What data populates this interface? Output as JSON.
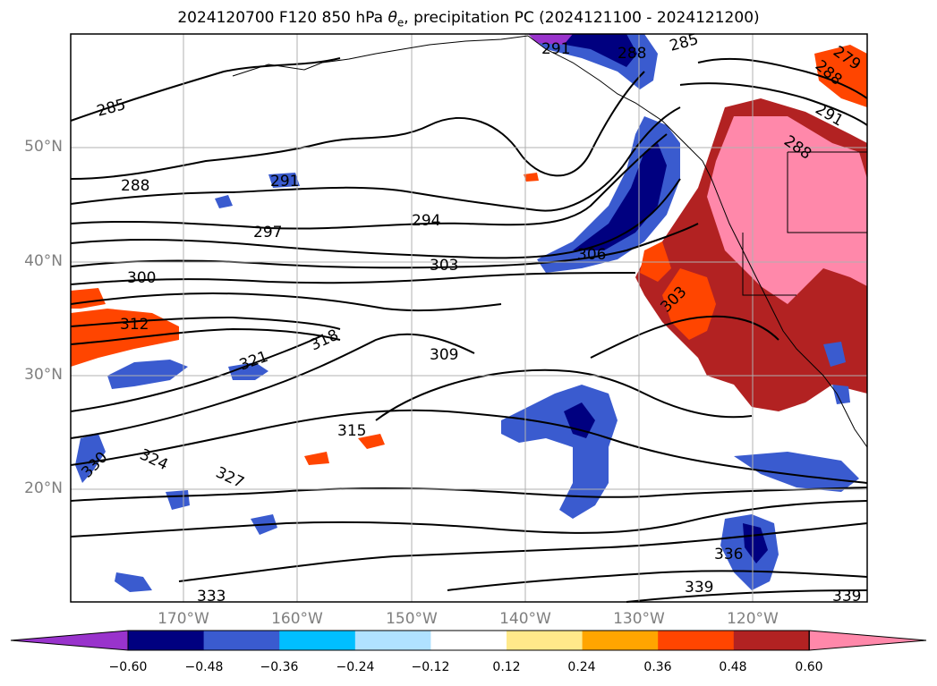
{
  "figure": {
    "title_prefix": "2024120700 F120 850 hPa ",
    "title_var": "θ",
    "title_sub": "e",
    "title_suffix": ", precipitation PC (2024121100 - 2024121200)"
  },
  "axes": {
    "lat_labels": [
      "50°N",
      "40°N",
      "30°N",
      "20°N"
    ],
    "lon_labels": [
      "170°W",
      "160°W",
      "150°W",
      "140°W",
      "130°W",
      "120°W"
    ]
  },
  "contour_labels": [
    "285",
    "288",
    "291",
    "294",
    "297",
    "300",
    "303",
    "306",
    "309",
    "312",
    "315",
    "318",
    "321",
    "324",
    "327",
    "330",
    "333",
    "336",
    "339",
    "291",
    "288",
    "288",
    "285",
    "279",
    "291",
    "288",
    "303",
    "339"
  ],
  "colorbar": {
    "ticks": [
      "−0.60",
      "−0.48",
      "−0.36",
      "−0.24",
      "−0.12",
      "0.12",
      "0.24",
      "0.36",
      "0.48",
      "0.60"
    ],
    "colors": [
      "#9933cc",
      "#000080",
      "#3a5bcf",
      "#00bfff",
      "#b0e2ff",
      "#ffffff",
      "#ffe98a",
      "#ffa500",
      "#ff4500",
      "#b22222",
      "#ff88aa"
    ]
  }
}
